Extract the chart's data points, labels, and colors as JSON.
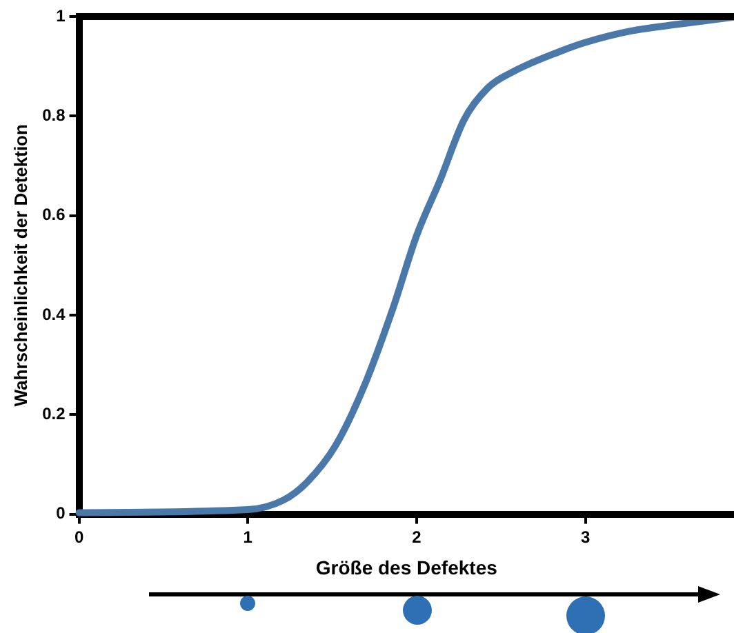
{
  "chart_data": {
    "type": "line",
    "xlabel": "Größe des Defektes",
    "ylabel": "Wahrscheinlichkeit der Detektion",
    "x": [
      0,
      1,
      1.21,
      1.35,
      1.52,
      1.69,
      1.86,
      2,
      2.14,
      2.28,
      2.42,
      2.57,
      2.85,
      3,
      3.27,
      3.56,
      3.88
    ],
    "series": [
      {
        "color": "#4a78a8",
        "values": [
          0.003,
          0.009,
          0.028,
          0.064,
          0.138,
          0.258,
          0.414,
          0.56,
          0.672,
          0.792,
          0.856,
          0.889,
          0.93,
          0.948,
          0.971,
          0.985,
          0.999
        ]
      }
    ],
    "xlim": [
      0,
      3.88
    ],
    "xticks": [
      0,
      1,
      2,
      3
    ],
    "ylim": [
      0,
      1
    ],
    "yticks": [
      0,
      0.2,
      0.4,
      0.6,
      0.8,
      1
    ],
    "grid": false,
    "legend": false,
    "marker": "none",
    "line_style": "solid"
  }
}
